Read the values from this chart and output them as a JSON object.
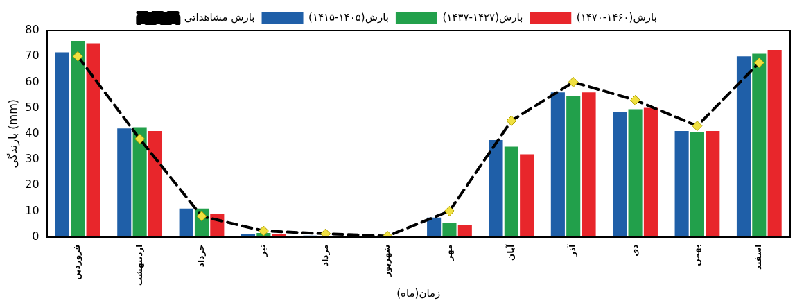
{
  "chart_data": {
    "type": "bar",
    "xlabel": "زمان(ماه)",
    "ylabel": "بارندگی (mm)",
    "categories": [
      "فروردین",
      "اردیبهشت",
      "خرداد",
      "تیر",
      "مرداد",
      "شهریور",
      "مهر",
      "آبان",
      "آذر",
      "دی",
      "بهمن",
      "اسفند"
    ],
    "series": [
      {
        "name": "بارش(۱۴۰۵-۱۴۱۵)",
        "color": "#1f5fa8",
        "values": [
          71.5,
          42,
          11,
          1,
          0.5,
          null,
          7.5,
          37.5,
          56,
          48.5,
          41,
          70
        ]
      },
      {
        "name": "بارش(۱۴۲۷-۱۴۳۷)",
        "color": "#22a04b",
        "values": [
          76,
          42.5,
          11,
          1.5,
          null,
          null,
          5.5,
          35,
          54.5,
          49.5,
          40.5,
          71
        ]
      },
      {
        "name": "بارش(۱۴۶۰-۱۴۷۰)",
        "color": "#e8262b",
        "values": [
          75,
          41,
          9,
          1,
          null,
          null,
          4.5,
          32,
          56,
          50,
          41,
          72.5
        ]
      },
      {
        "name": "بارش مشاهداتی",
        "type": "line",
        "color": "#000000",
        "marker": "diamond",
        "line_style": "dashed",
        "colors": [
          "#f0e040",
          "#f0e040",
          "#f0e040",
          "#f0e040",
          "#f0e040",
          "#f0e040",
          "#f0e040",
          "#f0e040",
          "#f0e040",
          "#f0e040",
          "#f0e040",
          "#f0e040"
        ],
        "values": [
          70,
          38,
          8,
          2.3,
          1.2,
          0.3,
          10,
          45,
          60,
          53,
          43,
          67.5
        ]
      }
    ],
    "ylim": [
      0,
      80
    ],
    "yticks": [
      0,
      10,
      20,
      30,
      40,
      50,
      60,
      70,
      80
    ],
    "grid": false,
    "legend": "top"
  }
}
